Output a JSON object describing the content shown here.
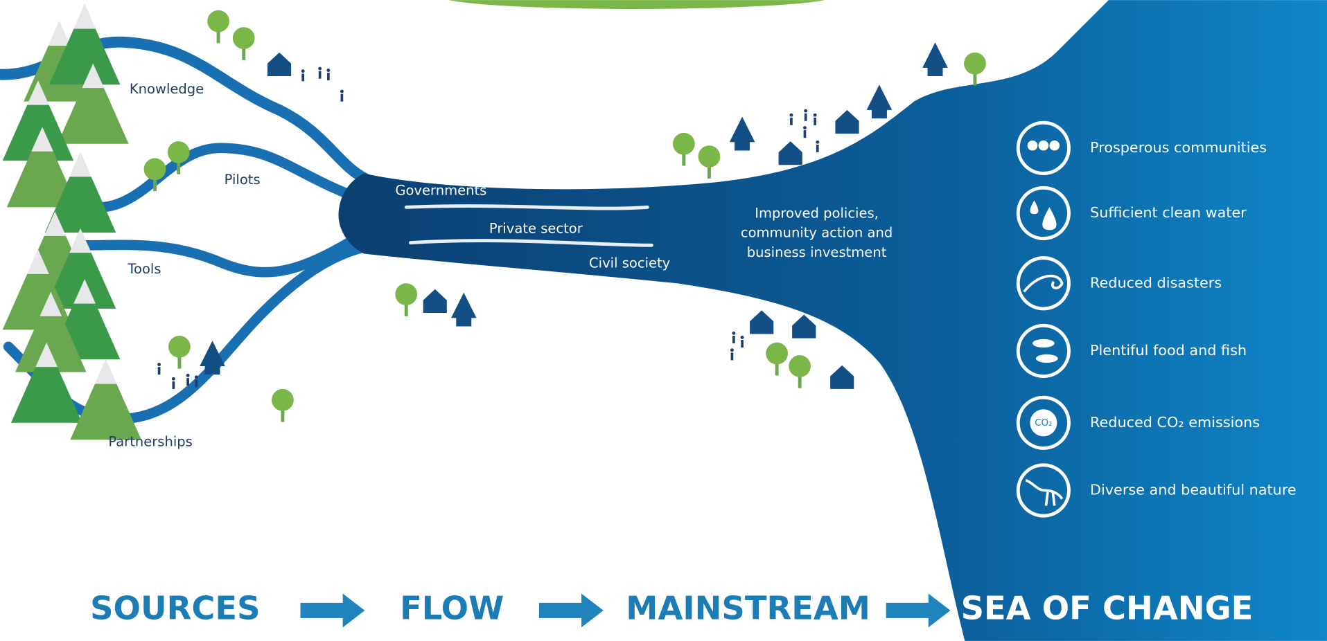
{
  "tributaries": [
    "Knowledge",
    "Pilots",
    "Tools",
    "Partnerships"
  ],
  "mainstream_actors": [
    "Governments",
    "Private sector",
    "Civil society"
  ],
  "mainstream_result": [
    "Improved policies,",
    "community action and",
    "business investment"
  ],
  "outcomes": [
    "Prosperous communities",
    "Sufficient clean water",
    "Reduced disasters",
    "Plentiful food and fish",
    "Reduced CO₂ emissions",
    "Diverse and beautiful nature"
  ],
  "co2_icon": "CO₂",
  "stages": [
    "SOURCES",
    "FLOW",
    "MAINSTREAM",
    "SEA OF CHANGE"
  ]
}
